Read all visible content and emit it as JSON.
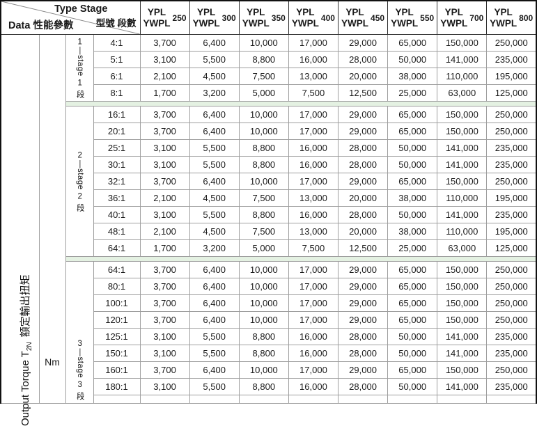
{
  "table": {
    "corner": {
      "top_right_en": "Type Stage",
      "top_right_zh": "型號 段數",
      "bottom_left": "Data 性能參數"
    },
    "columns": [
      {
        "line1": "YPL",
        "line2": "YWPL",
        "size": "250"
      },
      {
        "line1": "YPL",
        "line2": "YWPL",
        "size": "300"
      },
      {
        "line1": "YPL",
        "line2": "YWPL",
        "size": "350"
      },
      {
        "line1": "YPL",
        "line2": "YWPL",
        "size": "400"
      },
      {
        "line1": "YPL",
        "line2": "YWPL",
        "size": "450"
      },
      {
        "line1": "YPL",
        "line2": "YWPL",
        "size": "550"
      },
      {
        "line1": "YPL",
        "line2": "YWPL",
        "size": "700"
      },
      {
        "line1": "YPL",
        "line2": "YWPL",
        "size": "800"
      }
    ],
    "row_header": {
      "torque_label": {
        "en": "Output Torque T",
        "sub": "2N",
        "zh": "額定輸出扭矩"
      },
      "unit": "Nm"
    },
    "groups": [
      {
        "stage_label": "1—stage 1 段",
        "rows": [
          {
            "ratio": "4:1",
            "values": [
              "3,700",
              "6,400",
              "10,000",
              "17,000",
              "29,000",
              "65,000",
              "150,000",
              "250,000"
            ]
          },
          {
            "ratio": "5:1",
            "values": [
              "3,100",
              "5,500",
              "8,800",
              "16,000",
              "28,000",
              "50,000",
              "141,000",
              "235,000"
            ]
          },
          {
            "ratio": "6:1",
            "values": [
              "2,100",
              "4,500",
              "7,500",
              "13,000",
              "20,000",
              "38,000",
              "110,000",
              "195,000"
            ]
          },
          {
            "ratio": "8:1",
            "values": [
              "1,700",
              "3,200",
              "5,000",
              "7,500",
              "12,500",
              "25,000",
              "63,000",
              "125,000"
            ]
          }
        ]
      },
      {
        "stage_label": "2—stage 2 段",
        "rows": [
          {
            "ratio": "16:1",
            "values": [
              "3,700",
              "6,400",
              "10,000",
              "17,000",
              "29,000",
              "65,000",
              "150,000",
              "250,000"
            ]
          },
          {
            "ratio": "20:1",
            "values": [
              "3,700",
              "6,400",
              "10,000",
              "17,000",
              "29,000",
              "65,000",
              "150,000",
              "250,000"
            ]
          },
          {
            "ratio": "25:1",
            "values": [
              "3,100",
              "5,500",
              "8,800",
              "16,000",
              "28,000",
              "50,000",
              "141,000",
              "235,000"
            ]
          },
          {
            "ratio": "30:1",
            "values": [
              "3,100",
              "5,500",
              "8,800",
              "16,000",
              "28,000",
              "50,000",
              "141,000",
              "235,000"
            ]
          },
          {
            "ratio": "32:1",
            "values": [
              "3,700",
              "6,400",
              "10,000",
              "17,000",
              "29,000",
              "65,000",
              "150,000",
              "250,000"
            ]
          },
          {
            "ratio": "36:1",
            "values": [
              "2,100",
              "4,500",
              "7,500",
              "13,000",
              "20,000",
              "38,000",
              "110,000",
              "195,000"
            ]
          },
          {
            "ratio": "40:1",
            "values": [
              "3,100",
              "5,500",
              "8,800",
              "16,000",
              "28,000",
              "50,000",
              "141,000",
              "235,000"
            ]
          },
          {
            "ratio": "48:1",
            "values": [
              "2,100",
              "4,500",
              "7,500",
              "13,000",
              "20,000",
              "38,000",
              "110,000",
              "195,000"
            ]
          },
          {
            "ratio": "64:1",
            "values": [
              "1,700",
              "3,200",
              "5,000",
              "7,500",
              "12,500",
              "25,000",
              "63,000",
              "125,000"
            ]
          }
        ]
      },
      {
        "stage_label": "3—stage 3 段",
        "rows": [
          {
            "ratio": "64:1",
            "values": [
              "3,700",
              "6,400",
              "10,000",
              "17,000",
              "29,000",
              "65,000",
              "150,000",
              "250,000"
            ]
          },
          {
            "ratio": "80:1",
            "values": [
              "3,700",
              "6,400",
              "10,000",
              "17,000",
              "29,000",
              "65,000",
              "150,000",
              "250,000"
            ]
          },
          {
            "ratio": "100:1",
            "values": [
              "3,700",
              "6,400",
              "10,000",
              "17,000",
              "29,000",
              "65,000",
              "150,000",
              "250,000"
            ]
          },
          {
            "ratio": "120:1",
            "values": [
              "3,700",
              "6,400",
              "10,000",
              "17,000",
              "29,000",
              "65,000",
              "150,000",
              "250,000"
            ]
          },
          {
            "ratio": "125:1",
            "values": [
              "3,100",
              "5,500",
              "8,800",
              "16,000",
              "28,000",
              "50,000",
              "141,000",
              "235,000"
            ]
          },
          {
            "ratio": "150:1",
            "values": [
              "3,100",
              "5,500",
              "8,800",
              "16,000",
              "28,000",
              "50,000",
              "141,000",
              "235,000"
            ]
          },
          {
            "ratio": "160:1",
            "values": [
              "3,700",
              "6,400",
              "10,000",
              "17,000",
              "29,000",
              "65,000",
              "150,000",
              "250,000"
            ]
          },
          {
            "ratio": "180:1",
            "values": [
              "3,100",
              "5,500",
              "8,800",
              "16,000",
              "28,000",
              "50,000",
              "141,000",
              "235,000"
            ]
          }
        ]
      }
    ],
    "colors": {
      "separator_green": "#e4f1e2",
      "border_gray": "#9e9e9e",
      "border_dark": "#2f2f2f"
    }
  }
}
